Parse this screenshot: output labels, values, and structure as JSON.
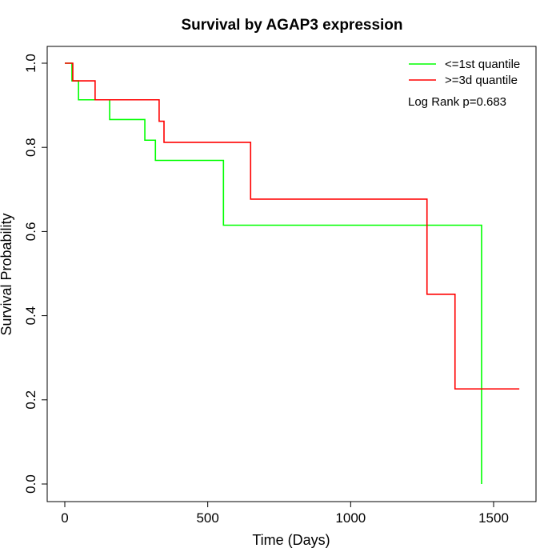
{
  "chart_data": {
    "type": "line",
    "title": "Survival by AGAP3 expression",
    "xlabel": "Time (Days)",
    "ylabel": "Survival Probability",
    "xlim": [
      0,
      1650
    ],
    "ylim": [
      0,
      1.0
    ],
    "x_ticks": [
      0,
      500,
      1000,
      1500
    ],
    "x_tick_labels": [
      "0",
      "500",
      "1000",
      "1500"
    ],
    "y_ticks": [
      0.0,
      0.2,
      0.4,
      0.6,
      0.8,
      1.0
    ],
    "y_tick_labels": [
      "0.0",
      "0.2",
      "0.4",
      "0.6",
      "0.8",
      "1.0"
    ],
    "grid": false,
    "legend_position": "top-right",
    "annotation": "Log Rank p=0.683",
    "series": [
      {
        "name": "<=1st quantile",
        "color": "#00ff00",
        "x": [
          0,
          25,
          48,
          157,
          280,
          317,
          555,
          1458,
          1458
        ],
        "y": [
          1.0,
          0.958,
          0.913,
          0.866,
          0.817,
          0.769,
          0.615,
          0.615,
          0.0
        ]
      },
      {
        "name": ">=3d quantile",
        "color": "#ff0000",
        "x": [
          0,
          28,
          106,
          330,
          347,
          650,
          1267,
          1365,
          1590
        ],
        "y": [
          1.0,
          0.958,
          0.913,
          0.862,
          0.812,
          0.677,
          0.451,
          0.226,
          0.226
        ]
      }
    ]
  }
}
